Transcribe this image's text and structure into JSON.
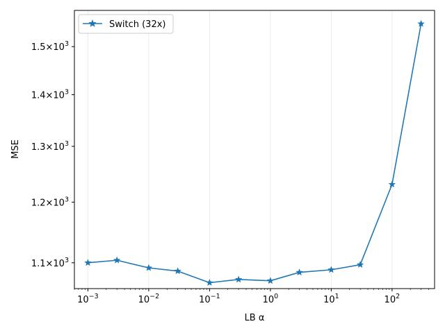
{
  "chart_data": {
    "type": "line",
    "title": "",
    "xlabel": "LB α",
    "ylabel": "MSE",
    "xscale": "log",
    "yscale": "log",
    "xlim": [
      0.0006,
      500
    ],
    "ylim": [
      1060,
      1580
    ],
    "x_ticks": [
      {
        "value": 0.001,
        "base": "10",
        "exp": "−3"
      },
      {
        "value": 0.01,
        "base": "10",
        "exp": "−2"
      },
      {
        "value": 0.1,
        "base": "10",
        "exp": "−1"
      },
      {
        "value": 1,
        "base": "10",
        "exp": "0"
      },
      {
        "value": 10,
        "base": "10",
        "exp": "1"
      },
      {
        "value": 100,
        "base": "10",
        "exp": "2"
      }
    ],
    "y_ticks": [
      {
        "value": 1100,
        "mant": "1.1",
        "times": "×",
        "base": "10",
        "exp": "3"
      },
      {
        "value": 1200,
        "mant": "1.2",
        "times": "×",
        "base": "10",
        "exp": "3"
      },
      {
        "value": 1300,
        "mant": "1.3",
        "times": "×",
        "base": "10",
        "exp": "3"
      },
      {
        "value": 1400,
        "mant": "1.4",
        "times": "×",
        "base": "10",
        "exp": "3"
      },
      {
        "value": 1500,
        "mant": "1.5",
        "times": "×",
        "base": "10",
        "exp": "3"
      }
    ],
    "grid": "vertical",
    "legend_position": "top-left",
    "series": [
      {
        "name": "Switch (32x)",
        "color": "#1f77b4",
        "marker": "star",
        "x": [
          0.001,
          0.003,
          0.01,
          0.03,
          0.1,
          0.3,
          1,
          3,
          10,
          30,
          100,
          300
        ],
        "y": [
          1100,
          1104,
          1092,
          1087,
          1069,
          1074,
          1072,
          1085,
          1089,
          1097,
          1231,
          1550
        ]
      }
    ]
  }
}
